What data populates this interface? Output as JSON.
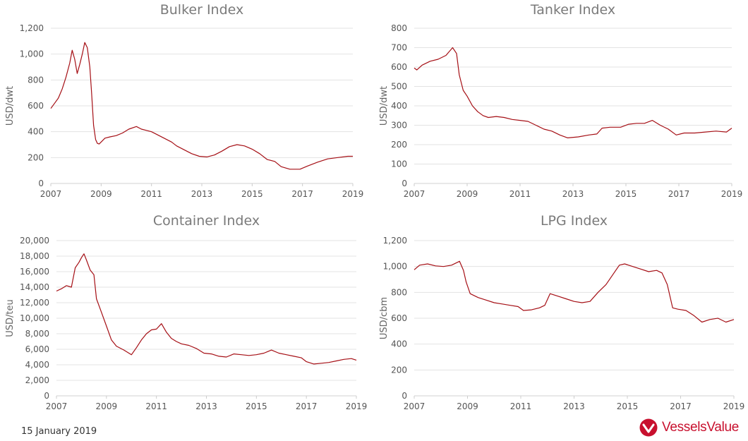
{
  "footer": {
    "date": "15 January 2019"
  },
  "brand": {
    "name": "VesselsValue",
    "color": "#c8102e"
  },
  "colors": {
    "series": "#a50f15"
  },
  "chart_data": [
    {
      "type": "line",
      "title": "Bulker Index",
      "ylabel": "USD/dwt",
      "xlim": [
        2007,
        2019
      ],
      "ylim": [
        0,
        1200
      ],
      "xticks": [
        2007,
        2009,
        2011,
        2013,
        2015,
        2017,
        2019
      ],
      "yticks": [
        0,
        200,
        400,
        600,
        800,
        1000,
        1200
      ],
      "ytick_labels": [
        "0",
        "200",
        "400",
        "600",
        "800",
        "1,000",
        "1,200"
      ],
      "grid": true,
      "series": [
        {
          "x": [
            2007.0,
            2007.15,
            2007.3,
            2007.45,
            2007.6,
            2007.75,
            2007.85,
            2007.95,
            2008.05,
            2008.15,
            2008.25,
            2008.35,
            2008.45,
            2008.55,
            2008.62,
            2008.7,
            2008.78,
            2008.85,
            2008.92,
            2009.0,
            2009.15,
            2009.35,
            2009.6,
            2009.85,
            2010.1,
            2010.4,
            2010.6,
            2010.8,
            2011.0,
            2011.2,
            2011.5,
            2011.8,
            2012.0,
            2012.3,
            2012.6,
            2012.9,
            2013.2,
            2013.5,
            2013.8,
            2014.1,
            2014.4,
            2014.7,
            2015.0,
            2015.3,
            2015.6,
            2015.9,
            2016.15,
            2016.5,
            2016.9,
            2017.2,
            2017.6,
            2018.0,
            2018.4,
            2018.8,
            2019.0
          ],
          "y": [
            580,
            620,
            660,
            730,
            820,
            930,
            1030,
            960,
            850,
            920,
            1000,
            1090,
            1050,
            900,
            700,
            450,
            340,
            310,
            305,
            320,
            350,
            360,
            370,
            390,
            420,
            440,
            420,
            410,
            400,
            380,
            350,
            320,
            290,
            260,
            230,
            210,
            205,
            220,
            250,
            285,
            300,
            290,
            265,
            230,
            185,
            170,
            130,
            110,
            110,
            135,
            165,
            190,
            200,
            210,
            210
          ]
        }
      ]
    },
    {
      "type": "line",
      "title": "Tanker Index",
      "ylabel": "USD/dwt",
      "xlim": [
        2007,
        2019
      ],
      "ylim": [
        0,
        800
      ],
      "xticks": [
        2007,
        2009,
        2011,
        2013,
        2015,
        2017,
        2019
      ],
      "yticks": [
        0,
        100,
        200,
        300,
        400,
        500,
        600,
        700,
        800
      ],
      "ytick_labels": [
        "0",
        "100",
        "200",
        "300",
        "400",
        "500",
        "600",
        "700",
        "800"
      ],
      "grid": true,
      "series": [
        {
          "x": [
            2007.0,
            2007.1,
            2007.3,
            2007.6,
            2007.9,
            2008.2,
            2008.45,
            2008.6,
            2008.7,
            2008.85,
            2009.0,
            2009.2,
            2009.4,
            2009.6,
            2009.8,
            2010.1,
            2010.4,
            2010.7,
            2011.0,
            2011.3,
            2011.6,
            2011.9,
            2012.2,
            2012.5,
            2012.8,
            2013.2,
            2013.6,
            2013.9,
            2014.1,
            2014.4,
            2014.8,
            2015.1,
            2015.4,
            2015.7,
            2016.0,
            2016.3,
            2016.6,
            2016.9,
            2017.2,
            2017.6,
            2018.0,
            2018.4,
            2018.8,
            2019.0
          ],
          "y": [
            595,
            585,
            610,
            630,
            640,
            660,
            700,
            670,
            560,
            480,
            450,
            400,
            370,
            350,
            340,
            345,
            340,
            330,
            325,
            320,
            300,
            280,
            270,
            250,
            235,
            240,
            250,
            255,
            285,
            290,
            290,
            305,
            310,
            310,
            325,
            300,
            280,
            250,
            260,
            260,
            265,
            270,
            265,
            285
          ]
        }
      ]
    },
    {
      "type": "line",
      "title": "Container Index",
      "ylabel": "USD/teu",
      "xlim": [
        2007,
        2019
      ],
      "ylim": [
        0,
        20000
      ],
      "xticks": [
        2007,
        2009,
        2011,
        2013,
        2015,
        2017,
        2019
      ],
      "yticks": [
        0,
        2000,
        4000,
        6000,
        8000,
        10000,
        12000,
        14000,
        16000,
        18000,
        20000
      ],
      "ytick_labels": [
        "0",
        "2,000",
        "4,000",
        "6,000",
        "8,000",
        "10,000",
        "12,000",
        "14,000",
        "16,000",
        "18,000",
        "20,000"
      ],
      "grid": true,
      "series": [
        {
          "x": [
            2007.0,
            2007.2,
            2007.4,
            2007.6,
            2007.75,
            2007.9,
            2008.0,
            2008.1,
            2008.2,
            2008.35,
            2008.5,
            2008.6,
            2008.75,
            2009.0,
            2009.2,
            2009.4,
            2009.7,
            2010.0,
            2010.2,
            2010.4,
            2010.6,
            2010.8,
            2011.0,
            2011.2,
            2011.4,
            2011.6,
            2011.8,
            2012.0,
            2012.3,
            2012.6,
            2012.9,
            2013.2,
            2013.5,
            2013.8,
            2014.1,
            2014.4,
            2014.7,
            2015.0,
            2015.3,
            2015.6,
            2015.9,
            2016.2,
            2016.5,
            2016.8,
            2017.0,
            2017.3,
            2017.6,
            2017.9,
            2018.2,
            2018.5,
            2018.8,
            2019.0
          ],
          "y": [
            13500,
            13800,
            14200,
            14000,
            16500,
            17200,
            17800,
            18300,
            17500,
            16200,
            15600,
            12500,
            11200,
            9000,
            7200,
            6400,
            5900,
            5300,
            6200,
            7200,
            8000,
            8500,
            8600,
            9300,
            8200,
            7400,
            7000,
            6700,
            6500,
            6100,
            5500,
            5400,
            5100,
            5000,
            5400,
            5300,
            5200,
            5300,
            5500,
            5900,
            5500,
            5300,
            5100,
            4900,
            4400,
            4100,
            4200,
            4300,
            4500,
            4700,
            4800,
            4600
          ]
        }
      ]
    },
    {
      "type": "line",
      "title": "LPG Index",
      "ylabel": "USD/cbm",
      "xlim": [
        2007,
        2019
      ],
      "ylim": [
        0,
        1200
      ],
      "xticks": [
        2007,
        2009,
        2011,
        2013,
        2015,
        2017,
        2019
      ],
      "yticks": [
        0,
        200,
        400,
        600,
        800,
        1000,
        1200
      ],
      "ytick_labels": [
        "0",
        "200",
        "400",
        "600",
        "800",
        "1,000",
        "1,200"
      ],
      "grid": true,
      "series": [
        {
          "x": [
            2007.0,
            2007.2,
            2007.5,
            2007.8,
            2008.1,
            2008.4,
            2008.7,
            2008.85,
            2008.95,
            2009.1,
            2009.4,
            2009.7,
            2010.0,
            2010.3,
            2010.6,
            2010.9,
            2011.1,
            2011.4,
            2011.7,
            2011.9,
            2012.1,
            2012.4,
            2012.7,
            2013.0,
            2013.3,
            2013.6,
            2013.9,
            2014.2,
            2014.5,
            2014.7,
            2014.9,
            2015.2,
            2015.5,
            2015.8,
            2016.1,
            2016.3,
            2016.5,
            2016.7,
            2016.9,
            2017.2,
            2017.5,
            2017.8,
            2018.1,
            2018.4,
            2018.7,
            2019.0
          ],
          "y": [
            975,
            1010,
            1020,
            1005,
            1000,
            1010,
            1040,
            970,
            880,
            790,
            760,
            740,
            720,
            710,
            700,
            690,
            660,
            665,
            680,
            700,
            790,
            770,
            750,
            730,
            720,
            730,
            800,
            860,
            950,
            1010,
            1020,
            1000,
            980,
            960,
            970,
            950,
            860,
            680,
            670,
            660,
            620,
            570,
            590,
            600,
            570,
            590
          ]
        }
      ]
    }
  ]
}
